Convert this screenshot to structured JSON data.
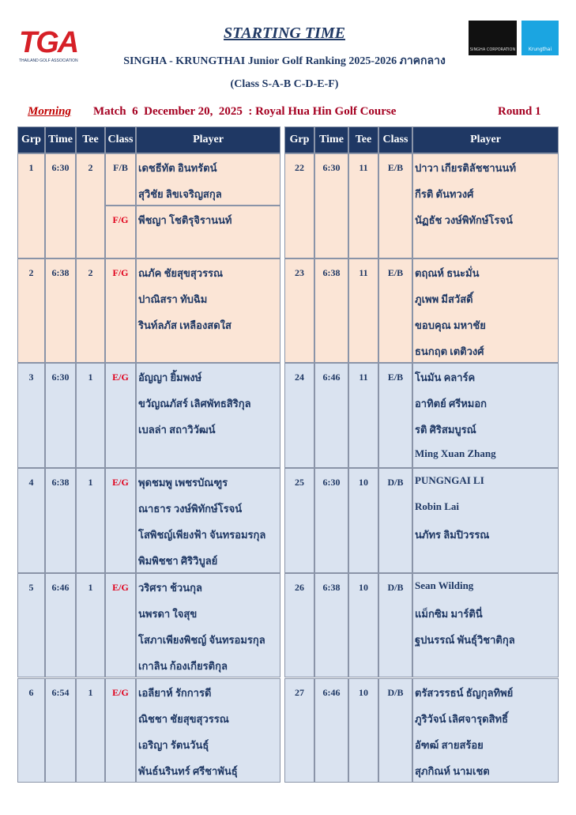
{
  "header": {
    "logo": "TGA",
    "logo_caption": "THAILAND GOLF ASSOCIATION",
    "title": "STARTING TIME",
    "subtitle": "SINGHA - KRUNGTHAI Junior Golf Ranking 2025-2026 ภาคกลาง",
    "classes": "(Class S-A-B C-D-E-F)",
    "sponsors": [
      "SINGHA CORPORATION",
      "Krungthai"
    ]
  },
  "info": {
    "session": "Morning",
    "match": "Match  6  December 20,  2025  : Royal Hua Hin Golf Course",
    "round": "Round 1"
  },
  "tables": [
    {
      "headers": [
        "Grp",
        "Time",
        "Tee",
        "Class",
        "Player"
      ],
      "groups": [
        {
          "grp": "1",
          "time": "6:30",
          "tee": "2",
          "entries": [
            {
              "class": "F/B",
              "players": [
                "เดชธีทัต อินทรัตน์",
                "สุวิชัย ลิขเจริญสกุล"
              ]
            },
            {
              "class": "F/G",
              "players": [
                "พีชญา โชติรุจิรานนท์"
              ]
            }
          ]
        },
        {
          "grp": "2",
          "time": "6:38",
          "tee": "2",
          "entries": [
            {
              "class": "F/G",
              "players": [
                "ณภัค ชัยสุขสุวรรณ",
                "ปาณิสรา ทับฉิม",
                "รินท์ลภัส เหลืองสดใส"
              ]
            }
          ]
        },
        {
          "grp": "3",
          "time": "6:30",
          "tee": "1",
          "entries": [
            {
              "class": "E/G",
              "players": [
                "อัญญา ยิ้มพงษ์",
                "ขวัญณภัสร์ เลิศพัทธสิริกุล",
                "เบลล่า สถาวิวัฒน์"
              ]
            }
          ]
        },
        {
          "grp": "4",
          "time": "6:38",
          "tee": "1",
          "entries": [
            {
              "class": "E/G",
              "players": [
                "พุดชมพู เพชรบัณฑูร",
                "ณาธาร วงษ์พิทักษ์โรจน์",
                "โสพิชญ์เพียงฟ้า จันทรอมรกุล",
                "พิมพิชชา ศิริวิบูลย์"
              ]
            }
          ]
        },
        {
          "grp": "5",
          "time": "6:46",
          "tee": "1",
          "entries": [
            {
              "class": "E/G",
              "players": [
                "วริศรา ช้วนกุล",
                "นพรดา ใจสุข",
                "โสภาเพียงพิชญ์ จันทรอมรกุล",
                "เกาลิน ก้องเกียรติกุล"
              ]
            }
          ]
        },
        {
          "grp": "6",
          "time": "6:54",
          "tee": "1",
          "entries": [
            {
              "class": "E/G",
              "players": [
                "เอลียาห์ รักการดี",
                "ณิชชา ชัยสุขสุวรรณ",
                "เอริญา รัตนวันธุ์",
                "พันธ์นรินทร์ ศรีชาพันธุ์"
              ]
            }
          ]
        }
      ]
    },
    {
      "headers": [
        "Grp",
        "Time",
        "Tee",
        "Class",
        "Player"
      ],
      "groups": [
        {
          "grp": "22",
          "time": "6:30",
          "tee": "11",
          "entries": [
            {
              "class": "E/B",
              "players": [
                "ปาวา เกียรติลัชชานนท์",
                "กีรติ ตันทวงศ์",
                "นัฏธัช วงษ์พิทักษ์โรจน์"
              ]
            }
          ]
        },
        {
          "grp": "23",
          "time": "6:38",
          "tee": "11",
          "entries": [
            {
              "class": "E/B",
              "players": [
                "ตฤณห์ ธนะมั่น",
                "ภูเพพ มีสวัสดิ์",
                "ขอบคุณ มหาชัย",
                "ธนกฤต เตติวงศ์"
              ]
            }
          ]
        },
        {
          "grp": "24",
          "time": "6:46",
          "tee": "11",
          "entries": [
            {
              "class": "E/B",
              "players": [
                "โนมัน คลาร์ค",
                "อาทิตย์ ศรีหมอก",
                "รติ ศิริสมบูรณ์",
                "Ming Xuan Zhang"
              ]
            }
          ]
        },
        {
          "grp": "25",
          "time": "6:30",
          "tee": "10",
          "entries": [
            {
              "class": "D/B",
              "players": [
                "PUNGNGAI LI",
                "Robin Lai",
                "นภัทร ลิมปิวรรณ"
              ]
            }
          ]
        },
        {
          "grp": "26",
          "time": "6:38",
          "tee": "10",
          "entries": [
            {
              "class": "D/B",
              "players": [
                "Sean Wilding",
                "แม็กซิม มาร์ตินี่",
                "ฐปนรรณ์ พันธุ์วิชาติกุล"
              ]
            }
          ]
        },
        {
          "grp": "27",
          "time": "6:46",
          "tee": "10",
          "entries": [
            {
              "class": "D/B",
              "players": [
                "ตรัสวรรธน์ ธัญกุลทิพย์",
                "ภูริวัจน์ เลิศจารุดสิทธิ์",
                "อัฑฒ์ สายสร้อย",
                "สุภกิณห์ นามเชต"
              ]
            }
          ]
        }
      ]
    }
  ]
}
